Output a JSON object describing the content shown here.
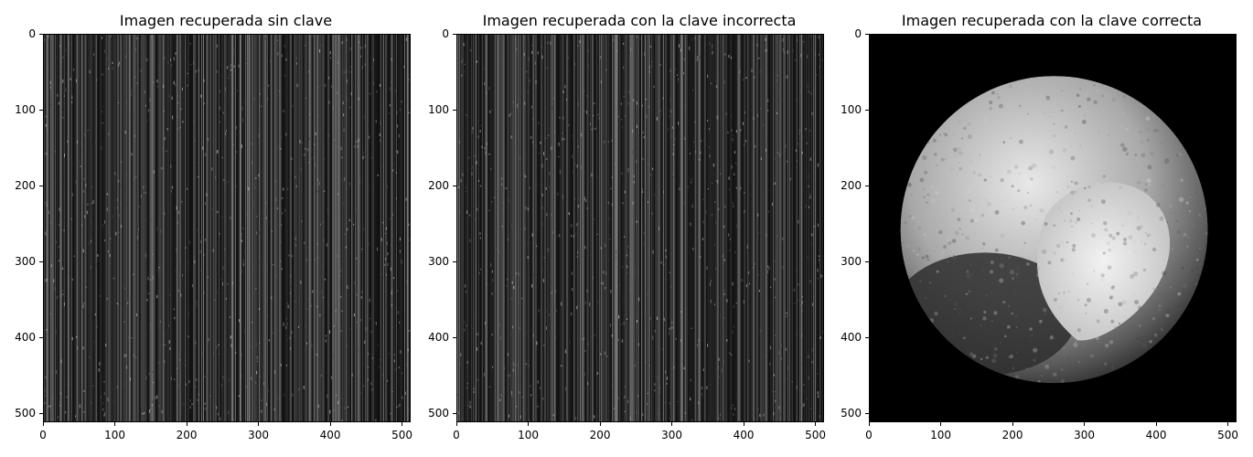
{
  "chart_data": [
    {
      "type": "heatmap",
      "title": "Imagen recuperada sin clave",
      "xlim": [
        0,
        512
      ],
      "ylim": [
        512,
        0
      ],
      "xticks": [
        0,
        100,
        200,
        300,
        400,
        500
      ],
      "yticks": [
        0,
        100,
        200,
        300,
        400,
        500
      ],
      "colormap": "gray",
      "content": "noise"
    },
    {
      "type": "heatmap",
      "title": "Imagen recuperada con la clave incorrecta",
      "xlim": [
        0,
        512
      ],
      "ylim": [
        512,
        0
      ],
      "xticks": [
        0,
        100,
        200,
        300,
        400,
        500
      ],
      "yticks": [
        0,
        100,
        200,
        300,
        400,
        500
      ],
      "colormap": "gray",
      "content": "noise"
    },
    {
      "type": "heatmap",
      "title": "Imagen recuperada con la clave correcta",
      "xlim": [
        0,
        512
      ],
      "ylim": [
        512,
        0
      ],
      "xticks": [
        0,
        100,
        200,
        300,
        400,
        500
      ],
      "yticks": [
        0,
        100,
        200,
        300,
        400,
        500
      ],
      "colormap": "gray",
      "content": "planet"
    }
  ]
}
